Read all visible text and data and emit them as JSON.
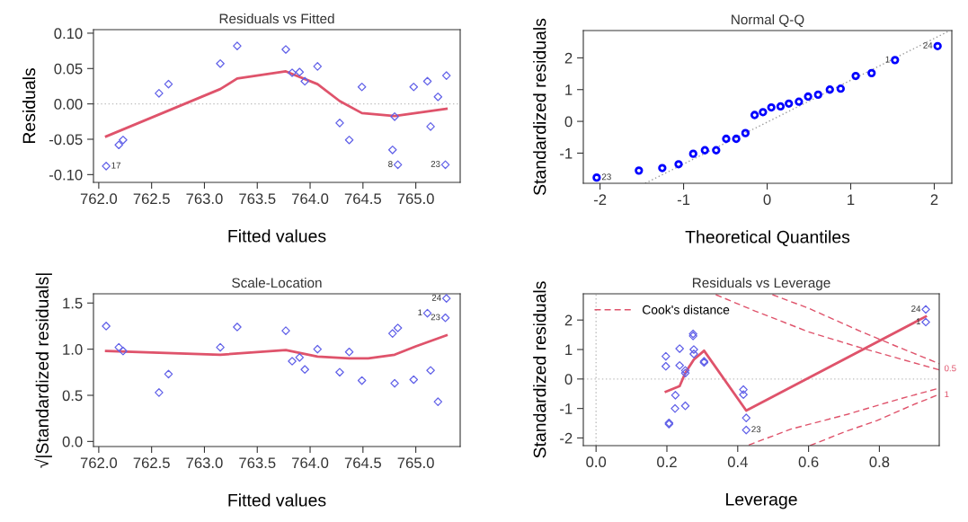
{
  "chart_data": [
    {
      "type": "scatter",
      "title": "Residuals vs Fitted",
      "xlabel": "Fitted values",
      "ylabel": "Residuals",
      "grid": false,
      "legend": false,
      "xlim": [
        761.95,
        765.42
      ],
      "ylim": [
        -0.111,
        0.105
      ],
      "xticks": [
        {
          "value": 762,
          "label": "762.0"
        },
        {
          "value": 762.5,
          "label": "762.5"
        },
        {
          "value": 763,
          "label": "763.0"
        },
        {
          "value": 763.5,
          "label": "763.5"
        },
        {
          "value": 764,
          "label": "764.0"
        },
        {
          "value": 764.5,
          "label": "764.5"
        },
        {
          "value": 765,
          "label": "765.0"
        }
      ],
      "yticks": [
        {
          "value": -0.1,
          "label": "-0.10"
        },
        {
          "value": -0.05,
          "label": "-0.05"
        },
        {
          "value": 0,
          "label": "0.00"
        },
        {
          "value": 0.05,
          "label": "0.05"
        },
        {
          "value": 0.1,
          "label": "0.10"
        }
      ],
      "ref_lines": [
        {
          "axis": "y",
          "value": 0,
          "color": "#bebebe",
          "line_style": "dotted"
        }
      ],
      "series": [
        {
          "color": "#6161e8",
          "marker": "diamond",
          "x": [
            762.07,
            762.19,
            762.23,
            762.57,
            762.66,
            763.15,
            763.31,
            763.77,
            763.83,
            763.9,
            763.95,
            764.07,
            764.28,
            764.37,
            764.49,
            764.78,
            764.8,
            764.83,
            764.98,
            765.11,
            765.14,
            765.21,
            765.28,
            765.29
          ],
          "values": [
            -0.088,
            -0.058,
            -0.051,
            0.015,
            0.028,
            0.057,
            0.082,
            0.077,
            0.044,
            0.045,
            0.032,
            0.053,
            -0.027,
            -0.051,
            0.024,
            -0.065,
            -0.018,
            -0.086,
            0.024,
            0.032,
            -0.032,
            0.01,
            -0.086,
            0.04
          ]
        },
        {
          "type": "line",
          "color": "#df536b",
          "line_style": "solid",
          "x": [
            762.07,
            763.15,
            763.31,
            763.77,
            764.07,
            764.28,
            764.49,
            764.8,
            765.29
          ],
          "values": [
            -0.046,
            0.021,
            0.036,
            0.046,
            0.028,
            0.004,
            -0.013,
            -0.017,
            -0.007
          ]
        }
      ],
      "annotations": [
        {
          "text": "17",
          "x": 762.07,
          "y": -0.088
        },
        {
          "text": "8",
          "x": 764.83,
          "y": -0.086
        },
        {
          "text": "23",
          "x": 765.28,
          "y": -0.086
        }
      ]
    },
    {
      "type": "scatter",
      "title": "Normal Q-Q",
      "xlabel": "Theoretical Quantiles",
      "ylabel": "Standardized residuals",
      "grid": false,
      "legend": false,
      "xlim": [
        -2.2,
        2.21
      ],
      "ylim": [
        -1.95,
        2.86
      ],
      "xticks": [
        -2,
        -1,
        0,
        1,
        2
      ],
      "yticks": [
        -1,
        0,
        1,
        2
      ],
      "series": [
        {
          "color": "#0000ff",
          "marker": "circle",
          "x": [
            -2.04,
            -1.535,
            -1.255,
            -1.06,
            -0.885,
            -0.745,
            -0.61,
            -0.49,
            -0.37,
            -0.26,
            -0.15,
            -0.05,
            0.05,
            0.16,
            0.26,
            0.38,
            0.49,
            0.61,
            0.75,
            0.88,
            1.06,
            1.25,
            1.53,
            2.04
          ],
          "values": [
            -1.77,
            -1.55,
            -1.47,
            -1.35,
            -1.02,
            -0.91,
            -0.91,
            -0.55,
            -0.55,
            -0.37,
            0.2,
            0.29,
            0.44,
            0.47,
            0.56,
            0.62,
            0.78,
            0.84,
            1.0,
            1.03,
            1.43,
            1.52,
            1.93,
            2.37
          ]
        },
        {
          "type": "line",
          "color": "#9a9a9a",
          "line_style": "dotted",
          "x": [
            -1.46,
            2.18
          ],
          "values": [
            -1.95,
            2.85
          ]
        }
      ],
      "annotations": [
        {
          "text": "23",
          "x": -2.04,
          "y": -1.77
        },
        {
          "text": "1",
          "x": 1.53,
          "y": 1.93
        },
        {
          "text": "24",
          "x": 2.04,
          "y": 2.37
        }
      ]
    },
    {
      "type": "scatter",
      "title": "Scale-Location",
      "xlabel": "Fitted values",
      "ylabel": "√|Standardized residuals|",
      "grid": false,
      "legend": false,
      "xlim": [
        761.95,
        765.42
      ],
      "ylim": [
        -0.055,
        1.6
      ],
      "xticks": [
        {
          "value": 762,
          "label": "762.0"
        },
        {
          "value": 762.5,
          "label": "762.5"
        },
        {
          "value": 763,
          "label": "763.0"
        },
        {
          "value": 763.5,
          "label": "763.5"
        },
        {
          "value": 764,
          "label": "764.0"
        },
        {
          "value": 764.5,
          "label": "764.5"
        },
        {
          "value": 765,
          "label": "765.0"
        }
      ],
      "yticks": [
        {
          "value": 0,
          "label": "0.0"
        },
        {
          "value": 0.5,
          "label": "0.5"
        },
        {
          "value": 1,
          "label": "1.0"
        },
        {
          "value": 1.5,
          "label": "1.5"
        }
      ],
      "series": [
        {
          "color": "#6161e8",
          "marker": "diamond",
          "x": [
            762.07,
            762.19,
            762.23,
            762.57,
            762.66,
            763.15,
            763.31,
            763.77,
            763.83,
            763.9,
            763.95,
            764.07,
            764.28,
            764.37,
            764.49,
            764.78,
            764.8,
            764.83,
            764.98,
            765.11,
            765.14,
            765.21,
            765.28,
            765.29
          ],
          "values": [
            1.25,
            1.02,
            0.98,
            0.53,
            0.73,
            1.02,
            1.24,
            1.2,
            0.87,
            0.91,
            0.78,
            1.0,
            0.75,
            0.97,
            0.66,
            1.17,
            0.63,
            1.23,
            0.67,
            1.39,
            0.77,
            0.43,
            1.34,
            1.55
          ]
        },
        {
          "type": "line",
          "color": "#df536b",
          "line_style": "solid",
          "x": [
            762.07,
            763.15,
            763.77,
            764.07,
            764.37,
            764.55,
            764.8,
            765.0,
            765.29
          ],
          "values": [
            0.98,
            0.94,
            0.99,
            0.92,
            0.9,
            0.9,
            0.94,
            1.03,
            1.15
          ]
        }
      ],
      "annotations": [
        {
          "text": "24",
          "x": 765.29,
          "y": 1.55
        },
        {
          "text": "1",
          "x": 765.11,
          "y": 1.39
        },
        {
          "text": "23",
          "x": 765.28,
          "y": 1.34
        }
      ]
    },
    {
      "type": "scatter",
      "title": "Residuals vs Leverage",
      "xlabel": "Leverage",
      "ylabel": "Standardized residuals",
      "grid": false,
      "legend": "upper left",
      "xlim": [
        -0.036,
        0.969
      ],
      "ylim": [
        -2.26,
        2.89
      ],
      "xticks": [
        {
          "value": 0,
          "label": "0.0"
        },
        {
          "value": 0.2,
          "label": "0.2"
        },
        {
          "value": 0.4,
          "label": "0.4"
        },
        {
          "value": 0.6,
          "label": "0.6"
        },
        {
          "value": 0.8,
          "label": "0.8"
        }
      ],
      "yticks": [
        -2,
        -1,
        0,
        1,
        2
      ],
      "ref_lines": [
        {
          "axis": "y",
          "value": 0,
          "color": "#bebebe",
          "line_style": "dotted"
        },
        {
          "axis": "x",
          "value": 0,
          "color": "#bebebe",
          "line_style": "dotted"
        }
      ],
      "series": [
        {
          "color": "#6161e8",
          "marker": "diamond",
          "x": [
            0.197,
            0.197,
            0.206,
            0.206,
            0.223,
            0.224,
            0.236,
            0.236,
            0.252,
            0.252,
            0.252,
            0.274,
            0.274,
            0.276,
            0.276,
            0.305,
            0.305,
            0.416,
            0.416,
            0.424,
            0.424,
            0.931,
            0.931
          ],
          "values": [
            0.77,
            0.43,
            -1.49,
            -1.53,
            -1.0,
            -0.55,
            1.03,
            0.46,
            0.29,
            0.2,
            -0.91,
            1.53,
            1.46,
            1.0,
            0.85,
            0.6,
            0.56,
            -0.36,
            -0.53,
            -1.32,
            -1.73,
            2.36,
            1.93
          ]
        },
        {
          "type": "line",
          "color": "#df536b",
          "line_style": "solid",
          "x": [
            0.197,
            0.236,
            0.252,
            0.276,
            0.305,
            0.424,
            0.931
          ],
          "values": [
            -0.43,
            -0.24,
            0.21,
            0.66,
            0.96,
            -1.07,
            2.12
          ]
        },
        {
          "type": "line",
          "name": "Cook's distance",
          "color": "#df536b",
          "line_style": "dashed",
          "x": [
            0.338,
            0.45,
            0.6,
            0.75,
            0.969
          ],
          "values": [
            2.86,
            2.3,
            1.6,
            1.05,
            0.31
          ]
        },
        {
          "type": "line",
          "color": "#df536b",
          "line_style": "dashed",
          "x": [
            0.498,
            0.6,
            0.75,
            0.85,
            0.969
          ],
          "values": [
            2.86,
            2.4,
            1.6,
            1.1,
            0.52
          ]
        },
        {
          "type": "line",
          "color": "#df536b",
          "line_style": "dashed",
          "x": [
            0.431,
            0.55,
            0.709,
            0.85,
            0.969
          ],
          "values": [
            -2.24,
            -1.7,
            -1.2,
            -0.7,
            -0.31
          ]
        },
        {
          "type": "line",
          "color": "#df536b",
          "line_style": "dashed",
          "x": [
            0.604,
            0.7,
            0.793,
            0.9,
            0.969
          ],
          "values": [
            -2.26,
            -1.8,
            -1.41,
            -0.85,
            -0.52
          ]
        }
      ],
      "annotations": [
        {
          "text": "24",
          "x": 0.931,
          "y": 2.36
        },
        {
          "text": "1",
          "x": 0.931,
          "y": 1.93
        },
        {
          "text": "23",
          "x": 0.424,
          "y": -1.73
        },
        {
          "text": "0.5",
          "x": 0.969,
          "y": 0.34
        },
        {
          "text": "1",
          "x": 0.969,
          "y": -0.54
        }
      ]
    }
  ]
}
